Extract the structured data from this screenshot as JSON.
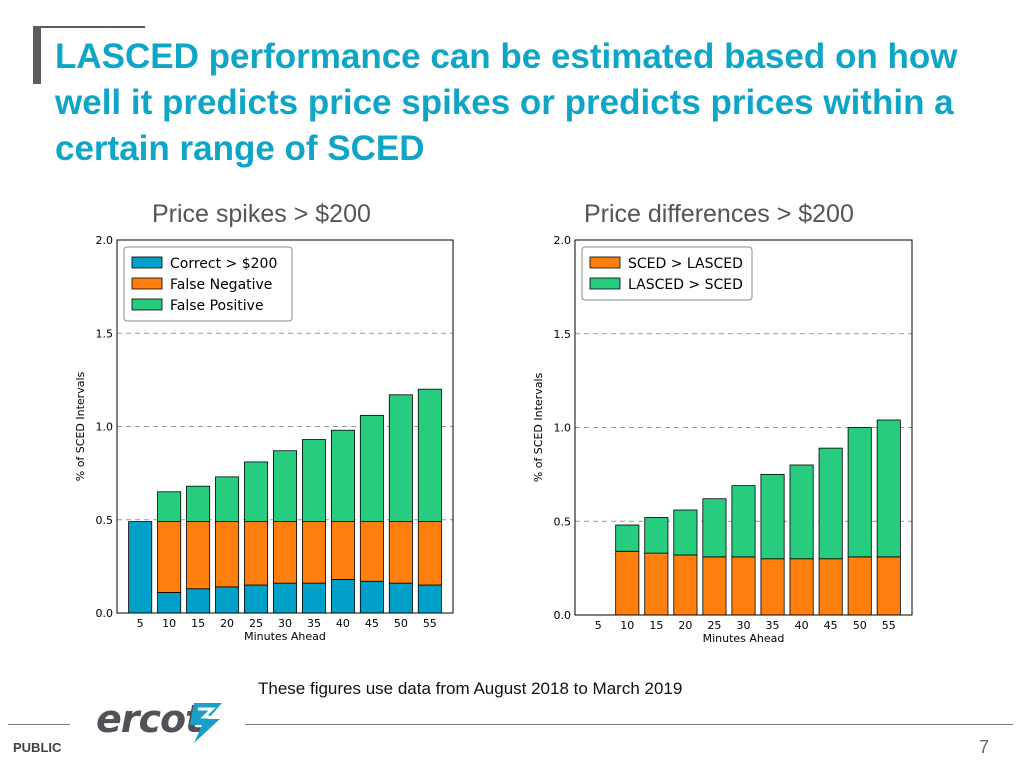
{
  "slide": {
    "title": "LASCED performance can be estimated based on how well it predicts price spikes or predicts prices within a certain range of SCED",
    "footnote": "These figures use data from August 2018 to March 2019",
    "footer_label": "PUBLIC",
    "page_number": "7",
    "logo_text": "ercot",
    "logo_icon": "ercot-lightning-icon"
  },
  "colors": {
    "title": "#0fa5c7",
    "correct": "#00a0c8",
    "orange": "#ff7f0e",
    "green": "#27cc7f",
    "grid": "#999999"
  },
  "chart_data": [
    {
      "type": "bar",
      "stacked": true,
      "title": "Price spikes > $200",
      "xlabel": "Minutes Ahead",
      "ylabel": "% of SCED Intervals",
      "ylim": [
        0,
        2.0
      ],
      "yticks": [
        "0.0",
        "0.5",
        "1.0",
        "1.5",
        "2.0"
      ],
      "grid": "horizontal dashed",
      "legend_position": "top-left",
      "categories": [
        "5",
        "10",
        "15",
        "20",
        "25",
        "30",
        "35",
        "40",
        "45",
        "50",
        "55"
      ],
      "series": [
        {
          "name": "Correct > $200",
          "color": "#00a0c8",
          "values": [
            0.49,
            0.11,
            0.13,
            0.14,
            0.15,
            0.16,
            0.16,
            0.18,
            0.17,
            0.16,
            0.15
          ]
        },
        {
          "name": "False Negative",
          "color": "#ff7f0e",
          "values": [
            0.0,
            0.38,
            0.36,
            0.35,
            0.34,
            0.33,
            0.33,
            0.31,
            0.32,
            0.33,
            0.34
          ]
        },
        {
          "name": "False Positive",
          "color": "#27cc7f",
          "values": [
            0.0,
            0.16,
            0.19,
            0.24,
            0.32,
            0.38,
            0.44,
            0.49,
            0.57,
            0.68,
            0.71
          ]
        }
      ]
    },
    {
      "type": "bar",
      "stacked": true,
      "title": "Price differences > $200",
      "xlabel": "Minutes Ahead",
      "ylabel": "% of SCED Intervals",
      "ylim": [
        0,
        2.0
      ],
      "yticks": [
        "0.0",
        "0.5",
        "1.0",
        "1.5",
        "2.0"
      ],
      "grid": "horizontal dashed",
      "legend_position": "top-left",
      "categories": [
        "5",
        "10",
        "15",
        "20",
        "25",
        "30",
        "35",
        "40",
        "45",
        "50",
        "55"
      ],
      "series": [
        {
          "name": "SCED > LASCED",
          "color": "#ff7f0e",
          "values": [
            0.0,
            0.34,
            0.33,
            0.32,
            0.31,
            0.31,
            0.3,
            0.3,
            0.3,
            0.31,
            0.31
          ]
        },
        {
          "name": "LASCED > SCED",
          "color": "#27cc7f",
          "values": [
            0.0,
            0.14,
            0.19,
            0.24,
            0.31,
            0.38,
            0.45,
            0.5,
            0.59,
            0.69,
            0.73
          ]
        }
      ]
    }
  ]
}
